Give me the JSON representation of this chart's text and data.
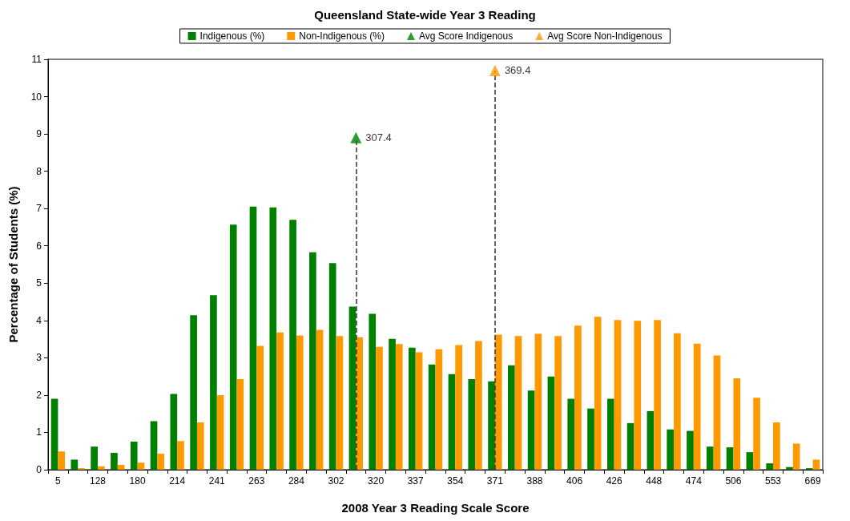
{
  "chart_data": {
    "type": "bar",
    "title": "Queensland State-wide Year 3 Reading",
    "xlabel": "2008 Year 3 Reading Scale Score",
    "ylabel": "Percentage of Students (%)",
    "categories": [
      "5",
      null,
      "128",
      null,
      "180",
      null,
      "214",
      null,
      "241",
      null,
      "263",
      null,
      "284",
      null,
      "302",
      null,
      "320",
      null,
      "337",
      null,
      "354",
      null,
      "371",
      null,
      "388",
      null,
      "406",
      null,
      "426",
      null,
      "448",
      null,
      "474",
      null,
      "506",
      null,
      "553",
      null,
      "669"
    ],
    "series": [
      {
        "name": "Indigenous (%)",
        "color": "#008000",
        "values": [
          1.9,
          0.27,
          0.62,
          0.45,
          0.75,
          1.3,
          2.03,
          4.14,
          4.68,
          6.57,
          7.05,
          7.03,
          6.7,
          5.83,
          5.54,
          4.37,
          4.18,
          3.51,
          3.27,
          2.82,
          2.56,
          2.43,
          2.37,
          2.8,
          2.12,
          2.5,
          1.9,
          1.64,
          1.9,
          1.25,
          1.57,
          1.08,
          1.04,
          0.62,
          0.6,
          0.47,
          0.17,
          0.07,
          0.04
        ]
      },
      {
        "name": "Non-Indigenous (%)",
        "color": "#ff9900",
        "values": [
          0.49,
          0.04,
          0.09,
          0.13,
          0.19,
          0.43,
          0.77,
          1.27,
          2.0,
          2.43,
          3.32,
          3.68,
          3.6,
          3.75,
          3.58,
          3.55,
          3.29,
          3.37,
          3.15,
          3.23,
          3.34,
          3.45,
          3.62,
          3.58,
          3.64,
          3.58,
          3.86,
          4.1,
          4.01,
          3.99,
          4.01,
          3.66,
          3.38,
          3.06,
          2.45,
          1.93,
          1.27,
          0.7,
          0.27
        ]
      },
      {
        "name": "Avg Score Indigenous",
        "type": "scatter",
        "color": "#008000",
        "marker": "triangle",
        "line_style": "dashed",
        "values": [
          null,
          null,
          null,
          null,
          null,
          null,
          null,
          null,
          null,
          null,
          null,
          null,
          null,
          null,
          null,
          8.9,
          null,
          null,
          null,
          null,
          null,
          null,
          null,
          null,
          null,
          null,
          null,
          null,
          null,
          null,
          null,
          null,
          null,
          null,
          null,
          null,
          null,
          null,
          null
        ]
      },
      {
        "name": "Avg Score Non-Indigenous",
        "type": "scatter",
        "color": "#ff9900",
        "marker": "triangle",
        "line_style": "dashed",
        "values": [
          null,
          null,
          null,
          null,
          null,
          null,
          null,
          null,
          null,
          null,
          null,
          null,
          null,
          null,
          null,
          null,
          null,
          null,
          null,
          null,
          null,
          null,
          10.7,
          null,
          null,
          null,
          null,
          null,
          null,
          null,
          null,
          null,
          null,
          null,
          null,
          null,
          null,
          null,
          null
        ]
      }
    ],
    "annotations": [
      "307.4",
      "369.4"
    ],
    "ylim": [
      0,
      11
    ],
    "yticks": [
      0,
      1,
      2,
      3,
      4,
      5,
      6,
      7,
      8,
      9,
      10,
      11
    ],
    "legend": "top"
  }
}
